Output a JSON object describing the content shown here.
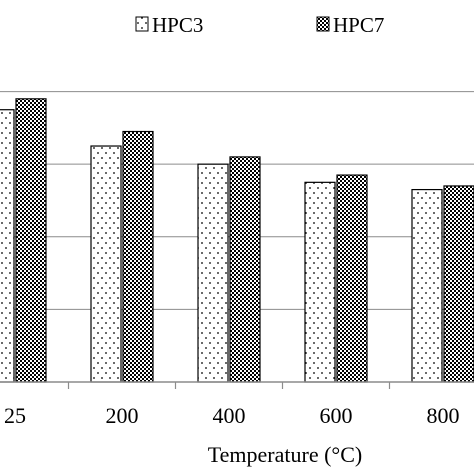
{
  "chart_data": {
    "type": "bar",
    "xlabel": "Temperature (°C)",
    "ylabel": "",
    "categories": [
      "25",
      "200",
      "400",
      "600",
      "800"
    ],
    "series": [
      {
        "name": "HPC3",
        "pattern": "dotted",
        "values": [
          75,
          65,
          60,
          55,
          53
        ]
      },
      {
        "name": "HPC7",
        "pattern": "dense-checker",
        "values": [
          78,
          69,
          62,
          57,
          54
        ]
      }
    ],
    "ylim": [
      0,
      92
    ],
    "gridline_values": [
      20,
      40,
      60,
      80
    ],
    "grid": "horizontal",
    "legend_position": "top",
    "colors": {
      "bar_outline": "#000000",
      "grid": "#8c8c8c",
      "axis": "#8c8c8c"
    }
  }
}
